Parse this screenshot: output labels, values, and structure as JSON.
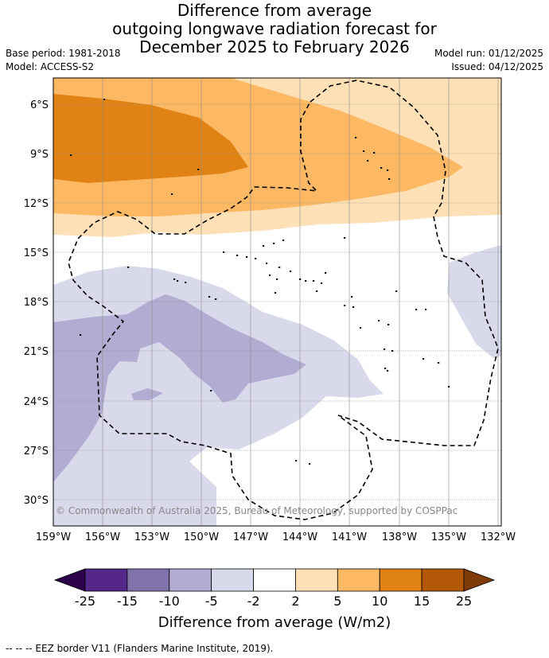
{
  "title": {
    "line1": "Difference from average",
    "line2": "outgoing longwave radiation forecast for",
    "line3": "December 2025 to February 2026"
  },
  "meta": {
    "base_period": "Base period: 1981-2018",
    "model": "Model: ACCESS-S2",
    "model_run": "Model run: 01/12/2025",
    "issued": "Issued: 04/12/2025"
  },
  "map": {
    "lat_labels": [
      "6°S",
      "9°S",
      "12°S",
      "15°S",
      "18°S",
      "21°S",
      "24°S",
      "27°S",
      "30°S"
    ],
    "lon_labels": [
      "159°W",
      "156°W",
      "153°W",
      "150°W",
      "147°W",
      "144°W",
      "141°W",
      "138°W",
      "135°W",
      "132°W"
    ],
    "copyright": "© Commonwealth of Australia 2025, Bureau of Meteorology, supported by COSPPac",
    "colors": {
      "pos_2_5": "#fee0b6",
      "pos_5_10": "#fdb863",
      "pos_10_15": "#e08214",
      "neg_2_5": "#d8daeb",
      "neg_5_10": "#b2abd2"
    }
  },
  "legend": {
    "tick_labels": [
      "-25",
      "-15",
      "-10",
      "-5",
      "-2",
      "2",
      "5",
      "10",
      "15",
      "25"
    ],
    "label": "Difference from average (W/m2)",
    "colors": [
      "#2d004b",
      "#542788",
      "#8073ac",
      "#b2abd2",
      "#d8daeb",
      "#ffffff",
      "#fee0b6",
      "#fdb863",
      "#e08214",
      "#b35806",
      "#7f3b08"
    ]
  },
  "footnote": "--  --  -- EEZ border V11 (Flanders Marine Institute, 2019)."
}
